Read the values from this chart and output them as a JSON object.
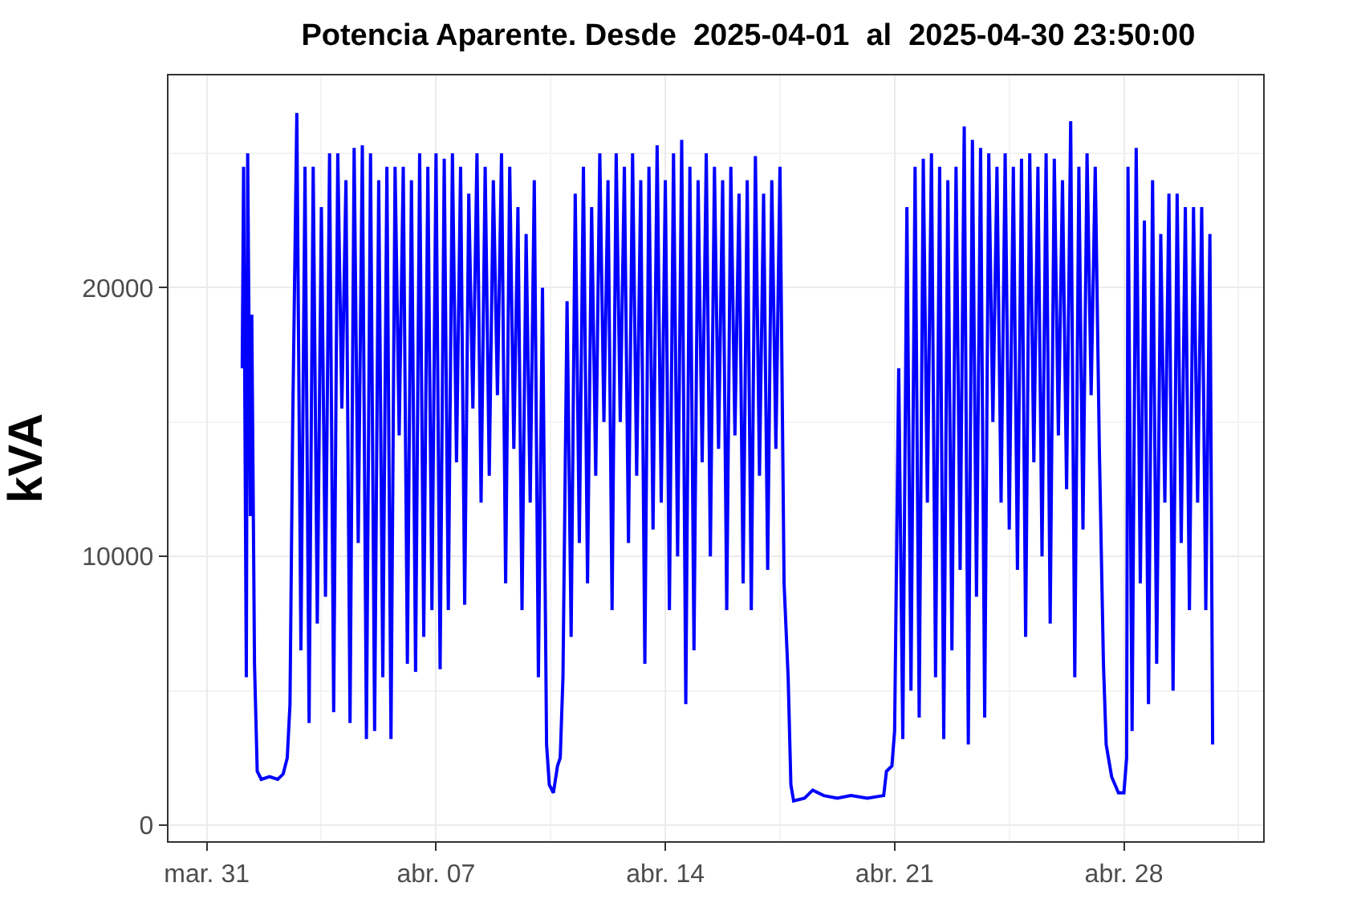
{
  "chart_data": {
    "type": "line",
    "title": "Potencia Aparente. Desde  2025-04-01  al  2025-04-30 23:50:00",
    "ylabel": "kVA",
    "xlim": [
      "2025-03-29T20:00",
      "2025-05-02T06:00"
    ],
    "xticks": [
      {
        "value": "2025-03-31",
        "label": "mar. 31"
      },
      {
        "value": "2025-04-07",
        "label": "abr. 07"
      },
      {
        "value": "2025-04-14",
        "label": "abr. 14"
      },
      {
        "value": "2025-04-21",
        "label": "abr. 21"
      },
      {
        "value": "2025-04-28",
        "label": "abr. 28"
      }
    ],
    "ylim": [
      -600,
      27900
    ],
    "yticks": [
      0,
      10000,
      20000
    ],
    "grid": true,
    "marker": "none",
    "line_style": "solid",
    "series": [
      {
        "color": "#0000ff",
        "x": [
          "2025-04-01T02:00",
          "2025-04-01T03:00",
          "2025-04-01T05:00",
          "2025-04-01T06:00",
          "2025-04-01T08:00",
          "2025-04-01T09:00",
          "2025-04-01T11:00",
          "2025-04-01T13:00",
          "2025-04-01T16:00",
          "2025-04-01T22:00",
          "2025-04-02T04:00",
          "2025-04-02T08:00",
          "2025-04-02T11:00",
          "2025-04-02T13:00",
          "2025-04-02T15:00",
          "2025-04-02T18:00",
          "2025-04-02T21:00",
          "2025-04-03T00:00",
          "2025-04-03T03:00",
          "2025-04-03T06:00",
          "2025-04-03T09:00",
          "2025-04-03T12:00",
          "2025-04-03T15:00",
          "2025-04-03T18:00",
          "2025-04-03T21:00",
          "2025-04-04T00:00",
          "2025-04-04T03:00",
          "2025-04-04T06:00",
          "2025-04-04T09:00",
          "2025-04-04T12:00",
          "2025-04-04T15:00",
          "2025-04-04T18:00",
          "2025-04-04T21:00",
          "2025-04-05T00:00",
          "2025-04-05T03:00",
          "2025-04-05T06:00",
          "2025-04-05T09:00",
          "2025-04-05T12:00",
          "2025-04-05T15:00",
          "2025-04-05T18:00",
          "2025-04-05T21:00",
          "2025-04-06T00:00",
          "2025-04-06T03:00",
          "2025-04-06T06:00",
          "2025-04-06T09:00",
          "2025-04-06T12:00",
          "2025-04-06T15:00",
          "2025-04-06T18:00",
          "2025-04-06T21:00",
          "2025-04-07T00:00",
          "2025-04-07T03:00",
          "2025-04-07T06:00",
          "2025-04-07T09:00",
          "2025-04-07T12:00",
          "2025-04-07T15:00",
          "2025-04-07T18:00",
          "2025-04-07T21:00",
          "2025-04-08T00:00",
          "2025-04-08T03:00",
          "2025-04-08T06:00",
          "2025-04-08T09:00",
          "2025-04-08T12:00",
          "2025-04-08T15:00",
          "2025-04-08T18:00",
          "2025-04-08T21:00",
          "2025-04-09T00:00",
          "2025-04-09T03:00",
          "2025-04-09T06:00",
          "2025-04-09T09:00",
          "2025-04-09T12:00",
          "2025-04-09T15:00",
          "2025-04-09T18:00",
          "2025-04-09T21:00",
          "2025-04-10T00:00",
          "2025-04-10T03:00",
          "2025-04-10T06:00",
          "2025-04-10T09:00",
          "2025-04-10T11:00",
          "2025-04-10T14:00",
          "2025-04-10T17:00",
          "2025-04-10T19:00",
          "2025-04-10T21:00",
          "2025-04-11T00:00",
          "2025-04-11T03:00",
          "2025-04-11T06:00",
          "2025-04-11T09:00",
          "2025-04-11T12:00",
          "2025-04-11T15:00",
          "2025-04-11T18:00",
          "2025-04-11T21:00",
          "2025-04-12T00:00",
          "2025-04-12T03:00",
          "2025-04-12T06:00",
          "2025-04-12T09:00",
          "2025-04-12T12:00",
          "2025-04-12T15:00",
          "2025-04-12T18:00",
          "2025-04-12T21:00",
          "2025-04-13T00:00",
          "2025-04-13T03:00",
          "2025-04-13T06:00",
          "2025-04-13T09:00",
          "2025-04-13T12:00",
          "2025-04-13T15:00",
          "2025-04-13T18:00",
          "2025-04-13T21:00",
          "2025-04-14T00:00",
          "2025-04-14T03:00",
          "2025-04-14T06:00",
          "2025-04-14T09:00",
          "2025-04-14T12:00",
          "2025-04-14T15:00",
          "2025-04-14T18:00",
          "2025-04-14T21:00",
          "2025-04-15T00:00",
          "2025-04-15T03:00",
          "2025-04-15T06:00",
          "2025-04-15T09:00",
          "2025-04-15T12:00",
          "2025-04-15T15:00",
          "2025-04-15T18:00",
          "2025-04-15T21:00",
          "2025-04-16T00:00",
          "2025-04-16T03:00",
          "2025-04-16T06:00",
          "2025-04-16T09:00",
          "2025-04-16T12:00",
          "2025-04-16T15:00",
          "2025-04-16T18:00",
          "2025-04-16T21:00",
          "2025-04-17T00:00",
          "2025-04-17T03:00",
          "2025-04-17T06:00",
          "2025-04-17T09:00",
          "2025-04-17T12:00",
          "2025-04-17T15:00",
          "2025-04-17T18:00",
          "2025-04-17T20:00",
          "2025-04-17T22:00",
          "2025-04-18T06:00",
          "2025-04-18T12:00",
          "2025-04-18T20:00",
          "2025-04-19T06:00",
          "2025-04-19T16:00",
          "2025-04-20T04:00",
          "2025-04-20T16:00",
          "2025-04-20T18:00",
          "2025-04-20T22:00",
          "2025-04-21T00:00",
          "2025-04-21T03:00",
          "2025-04-21T06:00",
          "2025-04-21T09:00",
          "2025-04-21T12:00",
          "2025-04-21T15:00",
          "2025-04-21T18:00",
          "2025-04-21T21:00",
          "2025-04-22T00:00",
          "2025-04-22T03:00",
          "2025-04-22T06:00",
          "2025-04-22T09:00",
          "2025-04-22T12:00",
          "2025-04-22T15:00",
          "2025-04-22T18:00",
          "2025-04-22T21:00",
          "2025-04-23T00:00",
          "2025-04-23T03:00",
          "2025-04-23T06:00",
          "2025-04-23T09:00",
          "2025-04-23T12:00",
          "2025-04-23T15:00",
          "2025-04-23T18:00",
          "2025-04-23T21:00",
          "2025-04-24T00:00",
          "2025-04-24T03:00",
          "2025-04-24T06:00",
          "2025-04-24T09:00",
          "2025-04-24T12:00",
          "2025-04-24T15:00",
          "2025-04-24T18:00",
          "2025-04-24T21:00",
          "2025-04-25T00:00",
          "2025-04-25T03:00",
          "2025-04-25T06:00",
          "2025-04-25T09:00",
          "2025-04-25T12:00",
          "2025-04-25T15:00",
          "2025-04-25T18:00",
          "2025-04-25T21:00",
          "2025-04-26T00:00",
          "2025-04-26T03:00",
          "2025-04-26T06:00",
          "2025-04-26T09:00",
          "2025-04-26T12:00",
          "2025-04-26T15:00",
          "2025-04-26T18:00",
          "2025-04-26T21:00",
          "2025-04-27T00:00",
          "2025-04-27T03:00",
          "2025-04-27T06:00",
          "2025-04-27T09:00",
          "2025-04-27T11:00",
          "2025-04-27T15:00",
          "2025-04-27T20:00",
          "2025-04-28T00:00",
          "2025-04-28T02:00",
          "2025-04-28T03:00",
          "2025-04-28T06:00",
          "2025-04-28T09:00",
          "2025-04-28T12:00",
          "2025-04-28T15:00",
          "2025-04-28T18:00",
          "2025-04-28T21:00",
          "2025-04-29T00:00",
          "2025-04-29T03:00",
          "2025-04-29T06:00",
          "2025-04-29T09:00",
          "2025-04-29T12:00",
          "2025-04-29T15:00",
          "2025-04-29T18:00",
          "2025-04-29T21:00",
          "2025-04-30T00:00",
          "2025-04-30T03:00",
          "2025-04-30T06:00",
          "2025-04-30T09:00",
          "2025-04-30T12:00",
          "2025-04-30T15:00",
          "2025-04-30T17:00"
        ],
        "values": [
          17000,
          24500,
          5500,
          25000,
          11500,
          19000,
          6000,
          2000,
          1700,
          1800,
          1700,
          1900,
          2500,
          4500,
          15000,
          26500,
          6500,
          24500,
          3800,
          24500,
          7500,
          23000,
          8500,
          25000,
          4200,
          25000,
          15500,
          24000,
          3800,
          25200,
          10500,
          25300,
          3200,
          25000,
          3500,
          24000,
          5500,
          24500,
          3200,
          24500,
          14500,
          24500,
          6000,
          24000,
          5700,
          25000,
          7000,
          24500,
          8000,
          25000,
          5800,
          24800,
          8000,
          25000,
          13500,
          24500,
          8200,
          23500,
          15500,
          25000,
          12000,
          24500,
          13000,
          24000,
          16000,
          25000,
          9000,
          24500,
          14000,
          23000,
          8000,
          22000,
          12000,
          24000,
          5500,
          20000,
          3000,
          1500,
          1200,
          2200,
          2500,
          5500,
          19500,
          7000,
          23500,
          10500,
          24500,
          9000,
          23000,
          13000,
          25000,
          15000,
          24000,
          8000,
          25000,
          15000,
          24500,
          10500,
          25000,
          13000,
          24000,
          6000,
          24500,
          11000,
          25300,
          12000,
          24000,
          8000,
          25000,
          10000,
          25500,
          4500,
          24500,
          6500,
          24000,
          13500,
          25000,
          10000,
          24500,
          14000,
          24000,
          8000,
          24500,
          14500,
          23500,
          9000,
          24000,
          8000,
          24900,
          13000,
          23500,
          9500,
          24000,
          14000,
          24500,
          9000,
          5500,
          1500,
          900,
          1000,
          1300,
          1100,
          1000,
          1100,
          1000,
          1100,
          2000,
          2200,
          3500,
          17000,
          3200,
          23000,
          5000,
          24500,
          4000,
          24800,
          12000,
          25000,
          5500,
          24500,
          3200,
          24000,
          6500,
          24500,
          9500,
          26000,
          3000,
          25500,
          8500,
          25200,
          4000,
          25000,
          15000,
          24500,
          12000,
          25000,
          11000,
          24500,
          9500,
          24800,
          7000,
          25000,
          13500,
          24500,
          10000,
          25000,
          7500,
          24800,
          14500,
          24000,
          12500,
          26200,
          5500,
          24500,
          11000,
          25000,
          16000,
          24500,
          14000,
          6000,
          3000,
          1800,
          1200,
          1200,
          2500,
          24500,
          3500,
          25200,
          9000,
          22500,
          4500,
          24000,
          6000,
          22000,
          12000,
          23500,
          5000,
          23500,
          10500,
          23000,
          8000,
          23000,
          12000,
          23000,
          8000,
          22000,
          3000
        ]
      }
    ]
  }
}
